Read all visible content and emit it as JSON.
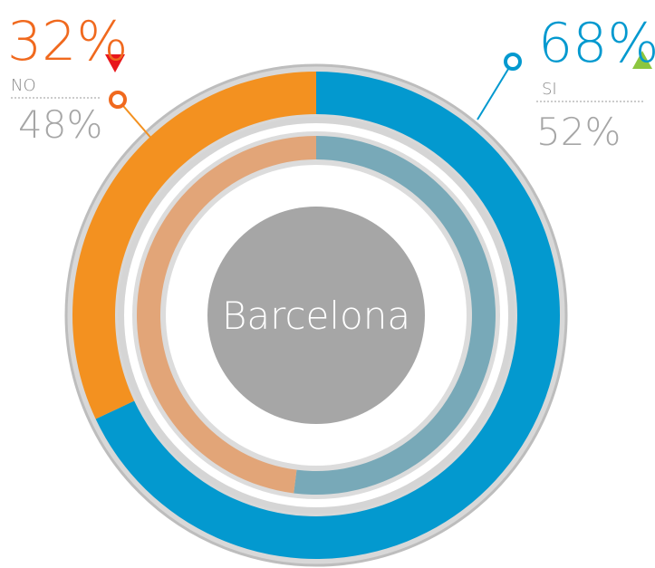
{
  "chart_data": {
    "type": "donut",
    "center_label": "Barcelona",
    "categories": [
      "SI",
      "NO"
    ],
    "rings": [
      {
        "values": [
          68,
          32
        ],
        "value_labels": [
          "68%",
          "32%"
        ],
        "colors": [
          "#0399cf",
          "#f39120"
        ]
      },
      {
        "values": [
          52,
          48
        ],
        "value_labels": [
          "52%",
          "48%"
        ],
        "colors": [
          "#78a9b8",
          "#e2a578"
        ]
      }
    ]
  }
}
